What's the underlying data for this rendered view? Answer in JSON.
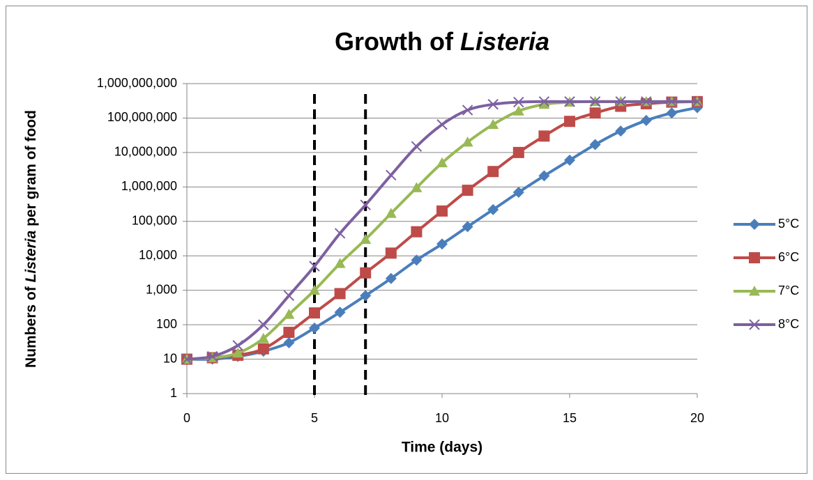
{
  "chart_data": {
    "type": "line",
    "title": "Growth of Listeria",
    "title_italic": "Listeria",
    "x_label": "Time (days)",
    "y_label": "Numbers of Listeria per gram of food",
    "y_label_italic": "Listeria",
    "x": [
      0,
      1,
      2,
      3,
      4,
      5,
      6,
      7,
      8,
      9,
      10,
      11,
      12,
      13,
      14,
      15,
      16,
      17,
      18,
      19,
      20
    ],
    "series": [
      {
        "name": "5°C",
        "color": "#4a7ebb",
        "marker": "diamond",
        "values": [
          10,
          10,
          12,
          17,
          30,
          80,
          230,
          700,
          2200,
          7500,
          22000,
          70000,
          220000,
          700000,
          2100000,
          6000000,
          17000000,
          42000000,
          85000000,
          140000000,
          200000000
        ]
      },
      {
        "name": "6°C",
        "color": "#be4b48",
        "marker": "square",
        "values": [
          10,
          11,
          13,
          20,
          60,
          220,
          800,
          3200,
          12000,
          50000,
          200000,
          800000,
          2800000,
          10000000,
          30000000,
          80000000,
          140000000,
          220000000,
          260000000,
          290000000,
          300000000
        ]
      },
      {
        "name": "7°C",
        "color": "#98b954",
        "marker": "triangle",
        "values": [
          10,
          11,
          15,
          40,
          200,
          1000,
          6000,
          30000,
          170000,
          950000,
          5000000,
          20000000,
          65000000,
          160000000,
          250000000,
          290000000,
          300000000,
          300000000,
          300000000,
          300000000,
          300000000
        ]
      },
      {
        "name": "8°C",
        "color": "#7d60a0",
        "marker": "x",
        "values": [
          10,
          12,
          25,
          100,
          700,
          5000,
          45000,
          300000,
          2200000,
          15000000,
          65000000,
          170000000,
          250000000,
          290000000,
          300000000,
          300000000,
          300000000,
          300000000,
          300000000,
          300000000,
          300000000
        ]
      }
    ],
    "xlim": [
      0,
      20
    ],
    "xticks": [
      0,
      5,
      10,
      15,
      20
    ],
    "ylim": [
      1,
      1000000000
    ],
    "y_scale": "log",
    "yticks": [
      1,
      10,
      100,
      {
        "value": 1000,
        "label": "1,000"
      },
      {
        "value": 10000,
        "label": "10,000"
      },
      {
        "value": 100000,
        "label": "100,000"
      },
      {
        "value": 1000000,
        "label": "1,000,000"
      },
      {
        "value": 10000000,
        "label": "10,000,000"
      },
      {
        "value": 100000000,
        "label": "100,000,000"
      },
      {
        "value": 1000000000,
        "label": "1,000,000,000"
      }
    ],
    "grid": true,
    "legend": "right",
    "vlines": [
      5,
      7
    ]
  }
}
